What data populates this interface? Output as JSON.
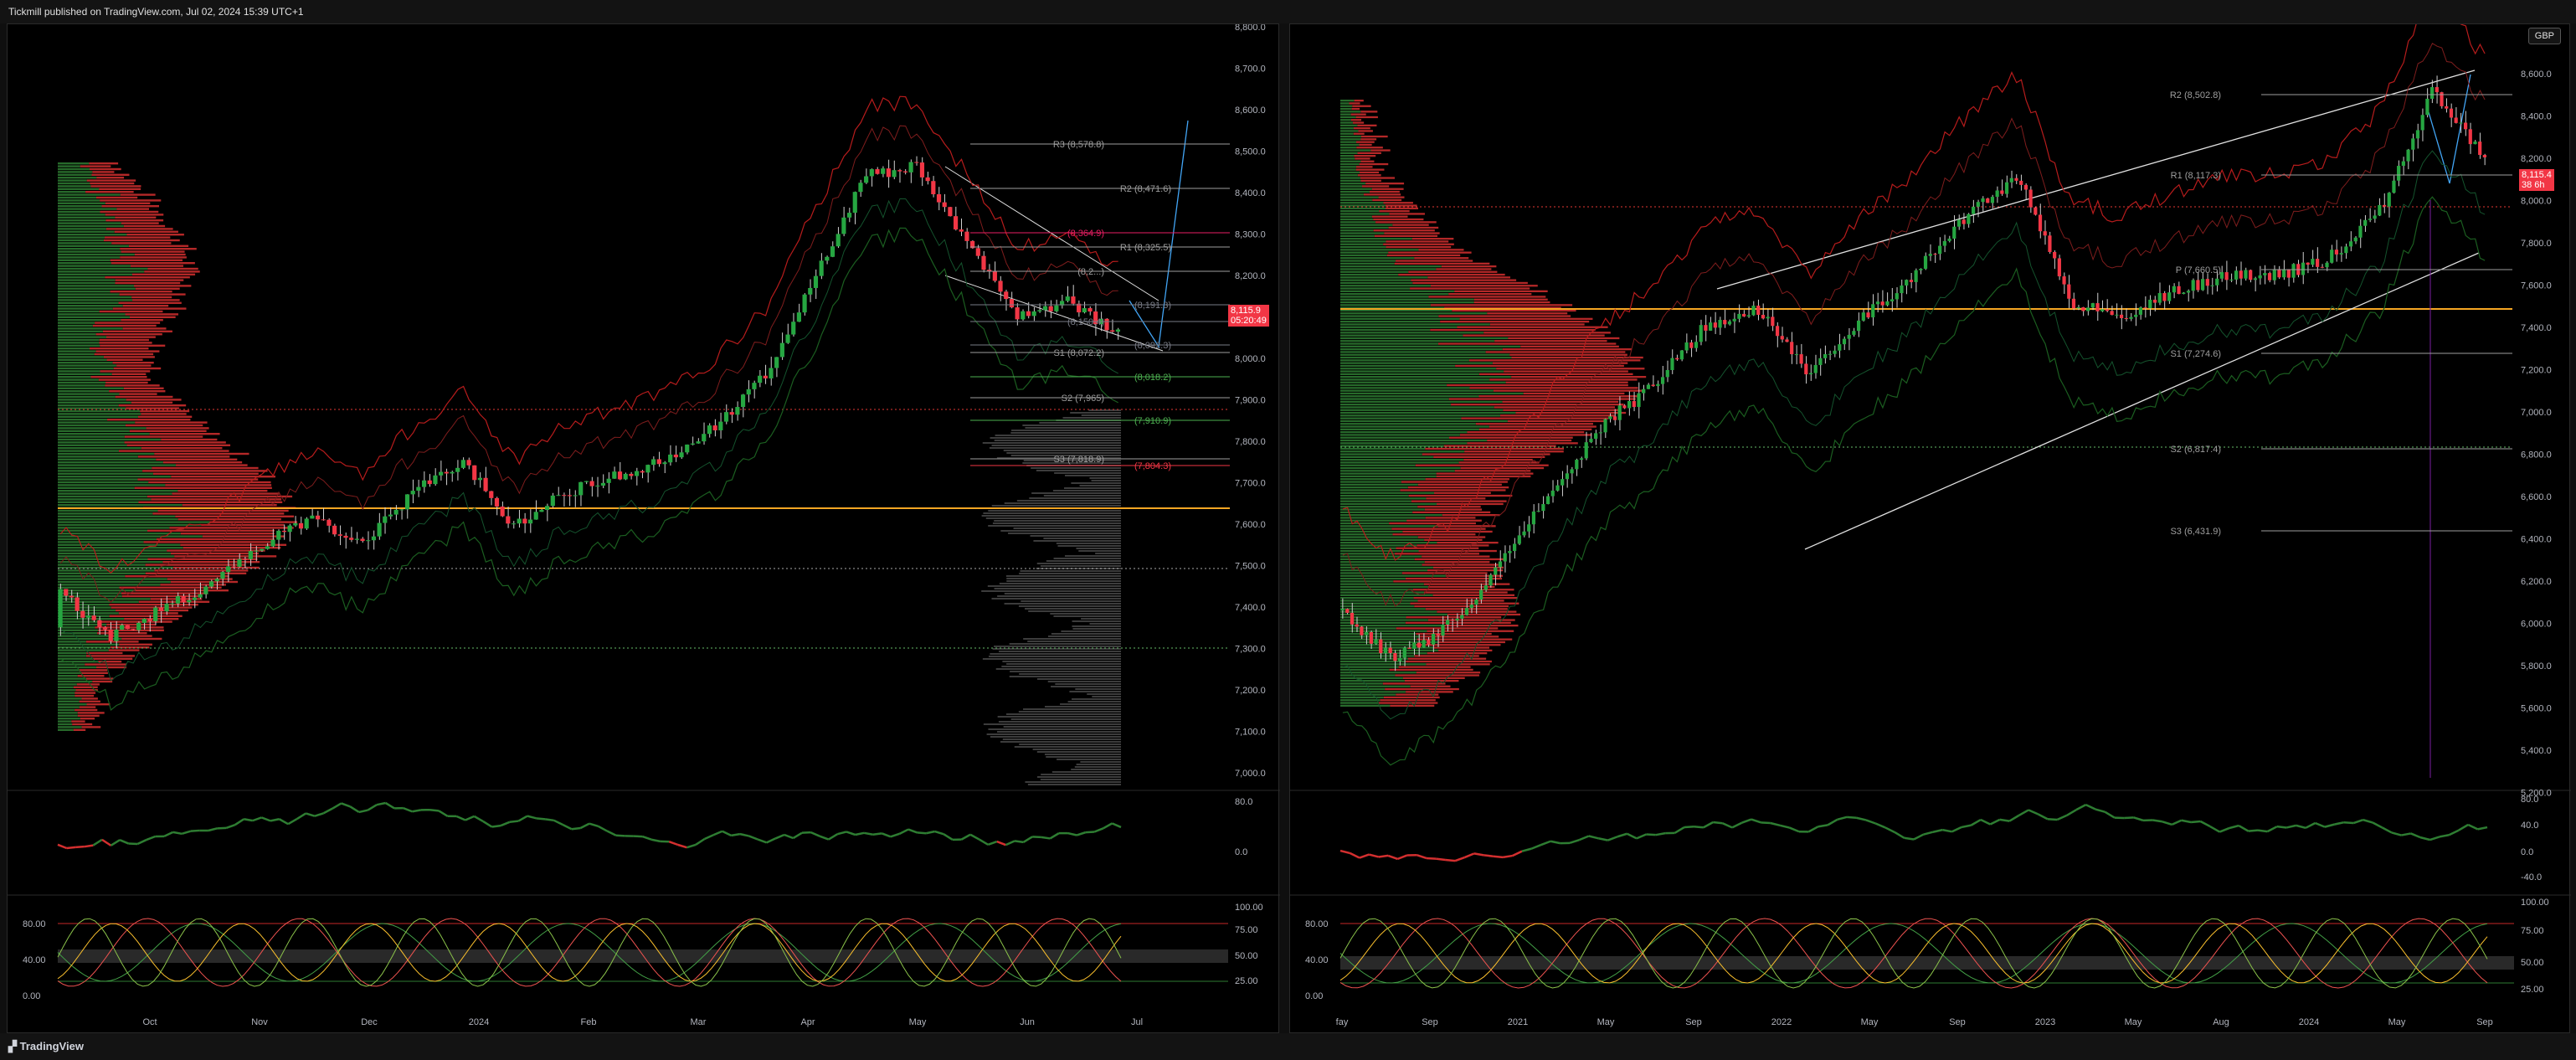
{
  "header": {
    "publisher_text": "Tickmill published on TradingView.com, Jul 02, 2024 15:39 UTC+1"
  },
  "footer": {
    "brand": "TradingView"
  },
  "colors": {
    "up": "#26a641",
    "down": "#f23645",
    "poc": "#f5a623",
    "fib": "#6e7fe8",
    "bb_red": "#b71c1c",
    "bb_green": "#1b5e20"
  },
  "left_chart": {
    "price_axis": [
      "8,800.0",
      "8,700.0",
      "8,600.0",
      "8,500.0",
      "8,400.0",
      "8,300.0",
      "8,200.0",
      "8,100.0",
      "8,000.0",
      "7,900.0",
      "7,800.0",
      "7,700.0",
      "7,600.0",
      "7,500.0",
      "7,400.0",
      "7,300.0",
      "7,200.0",
      "7,100.0",
      "7,000.0"
    ],
    "time_axis": [
      "Oct",
      "Nov",
      "Dec",
      "2024",
      "Feb",
      "Mar",
      "Apr",
      "May",
      "Jun",
      "Jul"
    ],
    "last_price": "8,115.9",
    "countdown": "05:20:49",
    "pivots": [
      {
        "label": "R3 (8,578.8)",
        "color": "#9e9e9e"
      },
      {
        "label": "R2 (8,471.6)",
        "color": "#9e9e9e"
      },
      {
        "label": "(8,364.9)",
        "color": "#e91e63"
      },
      {
        "label": "R1 (8,325.5)",
        "color": "#9e9e9e"
      },
      {
        "label": "(8,2...)",
        "color": "#9e9e9e"
      },
      {
        "label": "(8,191.3)",
        "color": "#787b86"
      },
      {
        "label": "(8,150.4)",
        "color": "#787b86"
      },
      {
        "label": "(8,092.3)",
        "color": "#787b86"
      },
      {
        "label": "S1 (8,072.2)",
        "color": "#9e9e9e"
      },
      {
        "label": "(8,018.2)",
        "color": "#4caf50"
      },
      {
        "label": "S2 (7,965)",
        "color": "#9e9e9e"
      },
      {
        "label": "(7,910.9)",
        "color": "#4caf50"
      },
      {
        "label": "S3 (7,818.9)",
        "color": "#9e9e9e"
      },
      {
        "label": "(7,804.3)",
        "color": "#f23645"
      }
    ],
    "rsi_axis": [
      "80.0",
      "0.0"
    ],
    "stoch_axis_left": [
      "80.00",
      "40.00",
      "0.00"
    ],
    "stoch_axis_right": [
      "100.00",
      "75.00",
      "50.00",
      "25.00"
    ]
  },
  "right_chart": {
    "currency": "GBP",
    "price_axis": [
      "8,600.0",
      "8,400.0",
      "8,200.0",
      "8,000.0",
      "7,800.0",
      "7,600.0",
      "7,400.0",
      "7,200.0",
      "7,000.0",
      "6,800.0",
      "6,600.0",
      "6,400.0",
      "6,200.0",
      "6,000.0",
      "5,800.0",
      "5,600.0",
      "5,400.0",
      "5,200.0"
    ],
    "time_axis": [
      "fay",
      "Sep",
      "2021",
      "May",
      "Sep",
      "2022",
      "May",
      "Sep",
      "2023",
      "May",
      "Aug",
      "2024",
      "May",
      "Sep"
    ],
    "last_price": "8,115.4",
    "countdown": "38 6h",
    "pivots": [
      {
        "label": "R2 (8,502.8)"
      },
      {
        "label": "R1 (8,117.3)"
      },
      {
        "label": "P (7,660.5)"
      },
      {
        "label": "S1 (7,274.6)"
      },
      {
        "label": "S2 (6,817.4)"
      },
      {
        "label": "S3 (6,431.9)"
      }
    ],
    "rsi_axis": [
      "80.0",
      "40.0",
      "0.0",
      "-40.0"
    ],
    "stoch_axis_left": [
      "80.00",
      "40.00",
      "0.00"
    ],
    "stoch_axis_right": [
      "100.00",
      "75.00",
      "50.00",
      "25.00"
    ]
  }
}
